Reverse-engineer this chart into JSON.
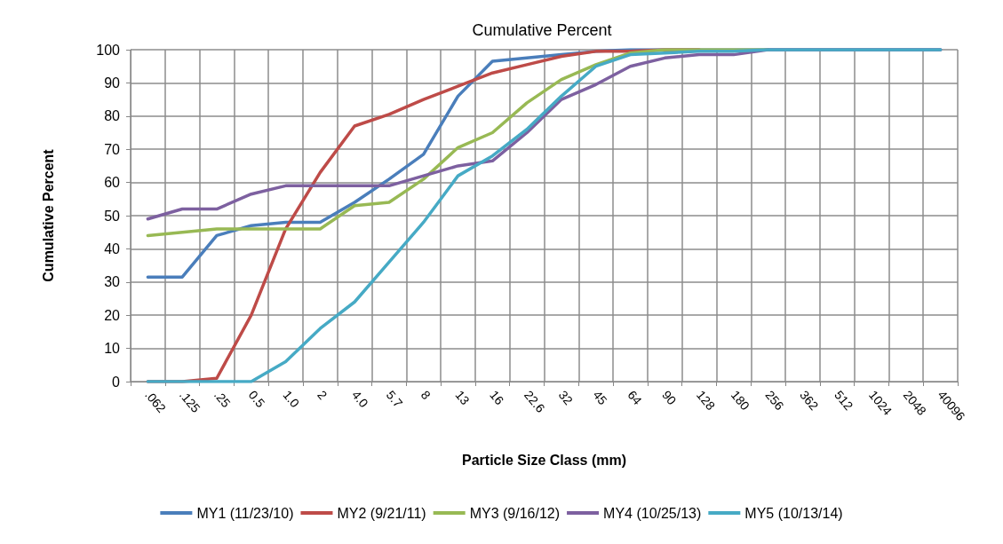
{
  "chart_data": {
    "type": "line",
    "title": "Cumulative Percent",
    "xlabel": "Particle Size Class (mm)",
    "ylabel": "Cumulative Percent",
    "categories": [
      ".062",
      ".125",
      ".25",
      "0.5",
      "1.0",
      "2",
      "4.0",
      "5.7",
      "8",
      "13",
      "16",
      "22.6",
      "32",
      "45",
      "64",
      "90",
      "128",
      "180",
      "256",
      "362",
      "512",
      "1024",
      "2048",
      "40096"
    ],
    "series": [
      {
        "name": "MY1 (11/23/10)",
        "color": "#4a7ebb",
        "values": [
          31.5,
          31.5,
          44,
          47,
          48,
          48,
          54,
          61,
          68.5,
          86,
          96.5,
          97.5,
          98.5,
          99.5,
          100,
          100,
          100,
          100,
          100,
          100,
          100,
          100,
          100,
          100
        ]
      },
      {
        "name": "MY2 (9/21/11)",
        "color": "#be4b48",
        "values": [
          0,
          0,
          1,
          20,
          46,
          63,
          77,
          80.5,
          85,
          89,
          93,
          95.5,
          98,
          99.5,
          99.5,
          100,
          100,
          null,
          null,
          null,
          null,
          null,
          null,
          null
        ]
      },
      {
        "name": "MY3 (9/16/12)",
        "color": "#98b954",
        "values": [
          44,
          45,
          46,
          46,
          46,
          46,
          53,
          54,
          61,
          70.5,
          75,
          84,
          91,
          95.5,
          99,
          100,
          100,
          100,
          100,
          null,
          null,
          null,
          null,
          null
        ]
      },
      {
        "name": "MY4 (10/25/13)",
        "color": "#7d60a0",
        "values": [
          49,
          52,
          52,
          56.5,
          59,
          59,
          59,
          59,
          62,
          65,
          66.5,
          75,
          85,
          89.5,
          95,
          97.5,
          98.5,
          98.5,
          100,
          100,
          100,
          100,
          100,
          100
        ]
      },
      {
        "name": "MY5 (10/13/14)",
        "color": "#46aac5",
        "values": [
          0,
          0,
          0,
          0,
          6,
          16,
          24,
          36,
          48,
          62,
          68,
          76,
          86,
          95,
          98.5,
          99,
          99.5,
          99.5,
          100,
          100,
          100,
          100,
          100,
          100
        ]
      }
    ],
    "ylim": [
      0,
      100
    ],
    "yticks": [
      0,
      10,
      20,
      30,
      40,
      50,
      60,
      70,
      80,
      90,
      100
    ],
    "grid": true,
    "legend": "bottom",
    "marker": "none",
    "line_style": "solid"
  }
}
